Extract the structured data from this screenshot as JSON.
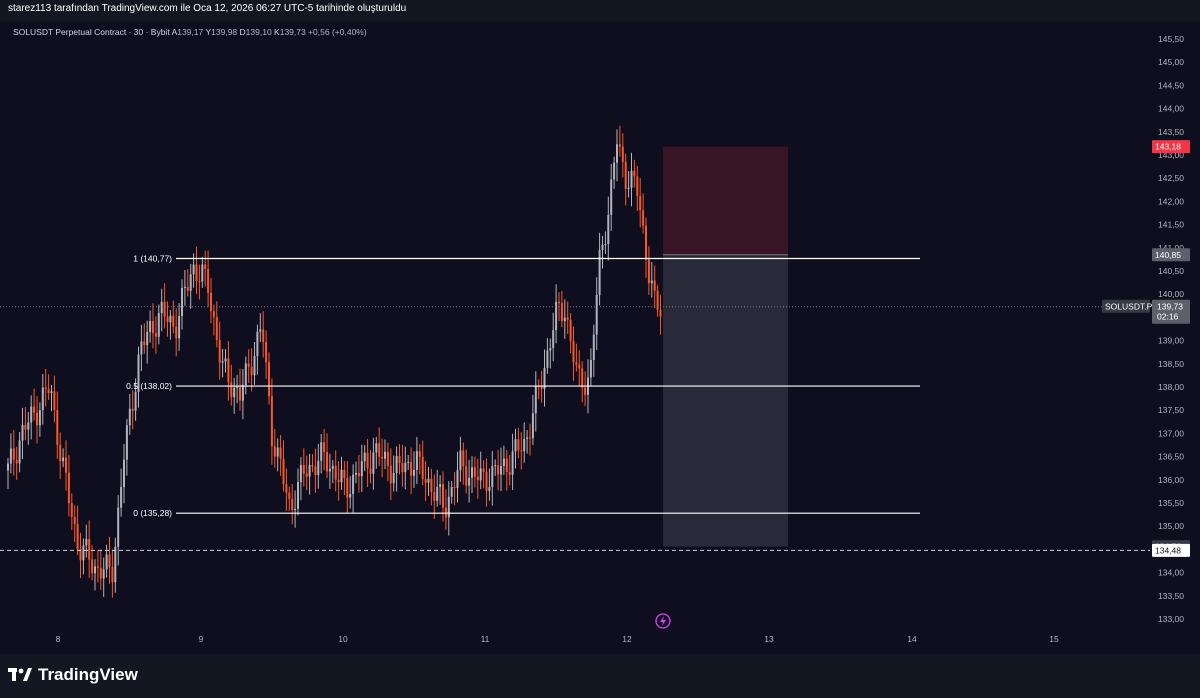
{
  "caption": "starez113 tarafından TradingView.com ile Oca 12, 2026 06:27 UTC-5 tarihinde oluşturuldu",
  "legend": {
    "symbol": "SOLUSDT Perpetual Contract · 30 · Bybit",
    "open_label": "A",
    "open": "139,17",
    "high_label": "Y",
    "high": "139,98",
    "low_label": "D",
    "low": "139,10",
    "close_label": "K",
    "close": "139,73",
    "change": "+0,56 (+0,40%)"
  },
  "brand": "TradingView",
  "price_axis": [
    "145,50",
    "145,00",
    "144,50",
    "144,00",
    "143,50",
    "143,00",
    "142,50",
    "142,00",
    "141,50",
    "141,00",
    "140,50",
    "140,00",
    "139,50",
    "139,00",
    "138,50",
    "138,00",
    "137,50",
    "137,00",
    "136,50",
    "136,00",
    "135,50",
    "135,00",
    "134,50",
    "134,00",
    "133,50",
    "133,00"
  ],
  "time_axis": [
    "8",
    "9",
    "10",
    "11",
    "12",
    "13",
    "14",
    "15"
  ],
  "fib_levels": [
    {
      "label": "1 (140,77)",
      "price": 140.77
    },
    {
      "label": "0.5 (138,02)",
      "price": 138.02
    },
    {
      "label": "0 (135,28)",
      "price": 135.28
    }
  ],
  "tags": {
    "stop": {
      "text": "143,18",
      "price": 143.18,
      "color": "#f23645"
    },
    "entry": {
      "text": "140,85",
      "price": 140.85,
      "color": "#5d606b"
    },
    "current_symbol": "SOLUSDT.P",
    "current_price": "139,73",
    "countdown": "02:16",
    "target": {
      "text": "134,56",
      "price": 134.56
    },
    "dashed": {
      "text": "134,48",
      "price": 134.48
    }
  },
  "position": {
    "stop_price": 143.18,
    "entry_price": 140.85,
    "target_price": 134.56
  },
  "colors": {
    "up": "#b2b5be",
    "down": "#ff5722",
    "background": "#0e0e1f",
    "frame": "#131722"
  },
  "icons": {
    "lightning": "lightning-icon"
  }
}
